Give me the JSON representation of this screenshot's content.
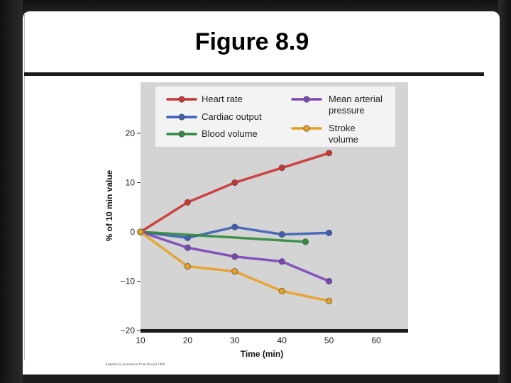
{
  "slide": {
    "title": "Figure 8.9",
    "credit": "Adapted by permission from Rowell 1986."
  },
  "colors": {
    "plot_background": "#d4d4d4",
    "legend_background": "#f3f3f3",
    "axis": "#1a1a1a"
  },
  "chart_data": {
    "type": "line",
    "title": "",
    "xlabel": "Time (min)",
    "ylabel": "% of 10 min value",
    "xlim": [
      10,
      70
    ],
    "ylim": [
      -20,
      30
    ],
    "x_ticks": [
      10,
      20,
      30,
      40,
      50,
      60
    ],
    "y_ticks": [
      20,
      10,
      0,
      -10,
      -20
    ],
    "x_tick_labels": [
      "10",
      "20",
      "30",
      "40",
      "50",
      "60"
    ],
    "y_tick_labels": [
      "20",
      "10",
      "0",
      "−10",
      "−20"
    ],
    "grid": false,
    "legend_position": "top",
    "series": [
      {
        "name": "Heart rate",
        "color": "#cc3333",
        "x": [
          10,
          20,
          30,
          40,
          50
        ],
        "y": [
          0,
          6,
          10,
          13,
          16
        ]
      },
      {
        "name": "Cardiac output",
        "color": "#3b5eb8",
        "x": [
          10,
          20,
          30,
          40,
          50
        ],
        "y": [
          0,
          -1.2,
          1,
          -0.5,
          -0.2
        ]
      },
      {
        "name": "Blood volume",
        "color": "#2e8b3e",
        "x": [
          10,
          45
        ],
        "y": [
          0,
          -2
        ]
      },
      {
        "name": "Mean arterial\npressure",
        "color": "#7b45b8",
        "x": [
          10,
          20,
          30,
          40,
          50
        ],
        "y": [
          0,
          -3.2,
          -5,
          -6,
          -10
        ]
      },
      {
        "name": "Stroke\nvolume",
        "color": "#e8a020",
        "x": [
          10,
          20,
          30,
          40,
          50
        ],
        "y": [
          0,
          -7,
          -8,
          -12,
          -14
        ]
      }
    ]
  }
}
